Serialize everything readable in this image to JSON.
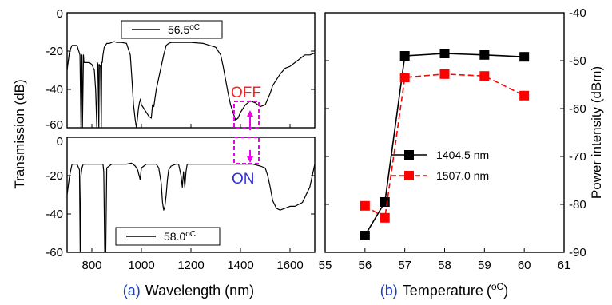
{
  "chart_data": [
    {
      "type": "line",
      "panel_label": "(a)",
      "xlabel": "Wavelength (nm)",
      "ylabel": "Transmission (dB)",
      "xlim": [
        700,
        1700
      ],
      "x_ticks": [
        "800",
        "1000",
        "1200",
        "1400",
        "1600"
      ],
      "subplots": [
        {
          "legend": "56.5",
          "legend_unit": "oC",
          "ylim": [
            -60,
            0
          ],
          "y_ticks": [
            "0",
            "-20",
            "-40",
            "-60"
          ],
          "annotation": "OFF",
          "annotation_color": "#ff2020",
          "series": [
            {
              "x": [
                700,
                710,
                720,
                740,
                752,
                756,
                758,
                760,
                762,
                766,
                768,
                775,
                790,
                800,
                810,
                815,
                820,
                822,
                825,
                828,
                830,
                835,
                838,
                840,
                842,
                845,
                850,
                860,
                870,
                880,
                890,
                900,
                920,
                940,
                955,
                962,
                968,
                975,
                980,
                985,
                988,
                992,
                996,
                1000,
                1010,
                1020,
                1030,
                1040,
                1045,
                1050,
                1060,
                1070,
                1080,
                1090,
                1100,
                1110,
                1120,
                1140,
                1160,
                1200,
                1250,
                1300,
                1320,
                1330,
                1340,
                1350,
                1360,
                1370,
                1380,
                1390,
                1400,
                1410,
                1420,
                1430,
                1440,
                1460,
                1480,
                1500,
                1510,
                1520,
                1530,
                1540,
                1550,
                1560,
                1580,
                1600,
                1620,
                1640,
                1660,
                1680,
                1700
              ],
              "y": [
                -30,
                -20,
                -17,
                -17,
                -22,
                -60,
                -22,
                -22,
                -60,
                -22,
                -26,
                -26,
                -26,
                -27,
                -30,
                -40,
                -60,
                -26,
                -27,
                -60,
                -27,
                -28,
                -60,
                -26,
                -26,
                -22,
                -18,
                -16,
                -16,
                -15.5,
                -15,
                -15.5,
                -15.5,
                -16,
                -22,
                -35,
                -48,
                -56,
                -60,
                -54,
                -50,
                -47,
                -45,
                -48,
                -50,
                -52,
                -54,
                -55,
                -48,
                -49,
                -40,
                -34,
                -28,
                -22,
                -17,
                -16,
                -15.5,
                -15.5,
                -15.5,
                -15.5,
                -16,
                -18,
                -22,
                -28,
                -35,
                -42,
                -48,
                -52,
                -56,
                -55,
                -52,
                -50,
                -48,
                -47,
                -46,
                -47,
                -49,
                -48,
                -45,
                -42,
                -38,
                -36,
                -34,
                -32,
                -29,
                -28,
                -26,
                -24,
                -22,
                -22,
                -21
              ]
            }
          ]
        },
        {
          "legend": "58.0",
          "legend_unit": "oC",
          "ylim": [
            -60,
            0
          ],
          "y_ticks": [
            "0",
            "-20",
            "-40",
            "-60"
          ],
          "annotation": "ON",
          "annotation_color": "#3030e0",
          "series": [
            {
              "x": [
                700,
                710,
                720,
                740,
                750,
                753,
                756,
                760,
                765,
                770,
                800,
                830,
                845,
                848,
                852,
                856,
                860,
                880,
                900,
                920,
                940,
                960,
                975,
                985,
                995,
                1000,
                1020,
                1040,
                1050,
                1060,
                1070,
                1080,
                1085,
                1090,
                1095,
                1100,
                1105,
                1110,
                1120,
                1140,
                1150,
                1160,
                1165,
                1170,
                1175,
                1180,
                1185,
                1190,
                1200,
                1220,
                1250,
                1300,
                1350,
                1400,
                1450,
                1480,
                1500,
                1510,
                1520,
                1530,
                1545,
                1560,
                1580,
                1600,
                1620,
                1650,
                1680,
                1700
              ],
              "y": [
                -30,
                -20,
                -14,
                -14,
                -17,
                -60,
                -20,
                -16,
                -14,
                -14,
                -14,
                -14,
                -14,
                -18,
                -60,
                -60,
                -16,
                -14,
                -14,
                -14,
                -14,
                -13.5,
                -15,
                -17,
                -22,
                -16,
                -14,
                -14,
                -14,
                -14,
                -16,
                -24,
                -34,
                -38,
                -36,
                -30,
                -22,
                -17,
                -15,
                -14,
                -14,
                -20,
                -26,
                -18,
                -26,
                -18,
                -14,
                -14,
                -14,
                -14,
                -14,
                -14,
                -14,
                -14,
                -14,
                -15,
                -16,
                -20,
                -26,
                -33,
                -37,
                -38,
                -37,
                -36,
                -36,
                -34,
                -26,
                -14
              ]
            }
          ]
        }
      ]
    },
    {
      "type": "line",
      "panel_label": "(b)",
      "xlabel": "Temperature",
      "xlabel_unit": "oC",
      "ylabel": "Power intensity (dBm)",
      "xlim": [
        55,
        61
      ],
      "ylim": [
        -90,
        -40
      ],
      "x_ticks": [
        "55",
        "56",
        "57",
        "58",
        "59",
        "60",
        "61"
      ],
      "y_ticks": [
        "-40",
        "-50",
        "-60",
        "-70",
        "-80",
        "-90"
      ],
      "legend_placement": "center-right",
      "x": [
        56,
        56.5,
        57,
        58,
        59,
        60
      ],
      "series": [
        {
          "name": "1404.5 nm",
          "color": "#000000",
          "marker": "square",
          "line": "solid",
          "values": [
            -86.5,
            -79.5,
            -49,
            -48.5,
            -48.8,
            -49.2
          ]
        },
        {
          "name": "1507.0 nm",
          "color": "#ff0000",
          "marker": "square",
          "line": "dashed",
          "values": [
            -80.3,
            -82.8,
            -53.5,
            -52.8,
            -53.2,
            -57.3
          ]
        }
      ]
    }
  ]
}
